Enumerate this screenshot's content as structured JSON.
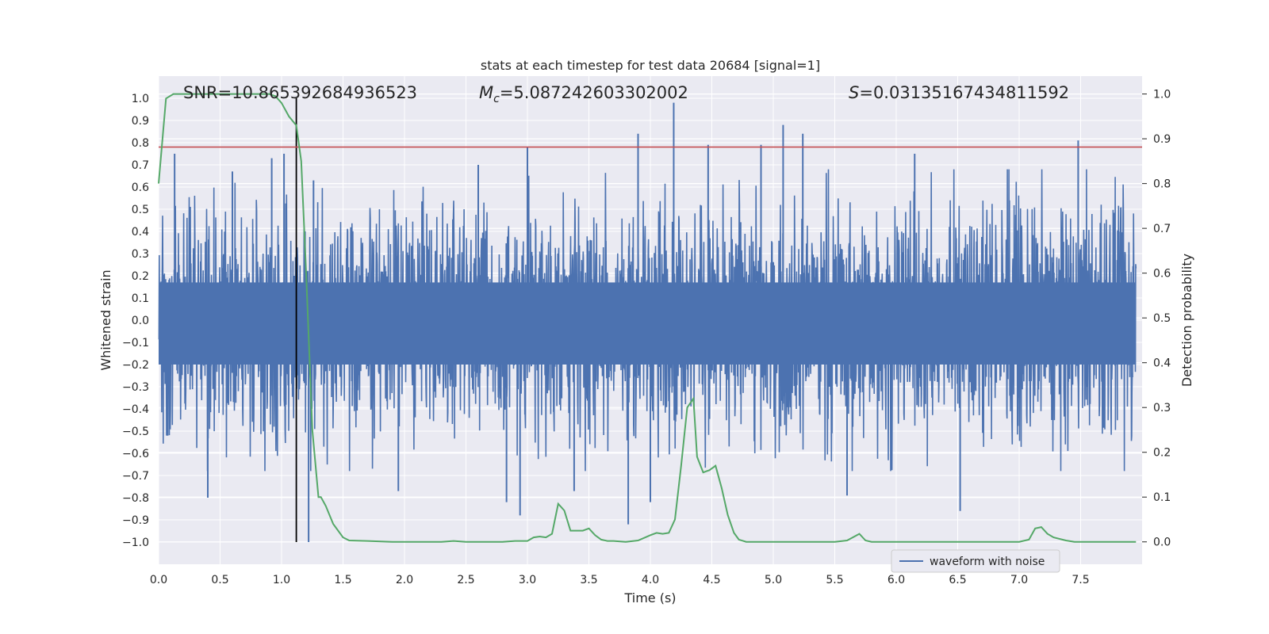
{
  "chart_data": {
    "type": "line",
    "title": "stats at each timestep for test data 20684 [signal=1]",
    "xlabel": "Time (s)",
    "ylabel_left": "Whitened strain",
    "ylabel_right": "Detection probability",
    "xlim": [
      0.0,
      8.0
    ],
    "ylim_left": [
      -1.1,
      1.1
    ],
    "ylim_right": [
      -0.05,
      1.04
    ],
    "x_ticks": [
      "0.0",
      "0.5",
      "1.0",
      "1.5",
      "2.0",
      "2.5",
      "3.0",
      "3.5",
      "4.0",
      "4.5",
      "5.0",
      "5.5",
      "6.0",
      "6.5",
      "7.0",
      "7.5"
    ],
    "y_left_ticks": [
      "1.0",
      "0.9",
      "0.8",
      "0.7",
      "0.6",
      "0.5",
      "0.4",
      "0.3",
      "0.2",
      "0.1",
      "0.0",
      "-0.1",
      "-0.2",
      "-0.3",
      "-0.4",
      "-0.5",
      "-0.6",
      "-0.7",
      "-0.8",
      "-0.9",
      "-1.0"
    ],
    "y_right_ticks": [
      "1.0",
      "0.9",
      "0.8",
      "0.7",
      "0.6",
      "0.5",
      "0.4",
      "0.3",
      "0.2",
      "0.1",
      "0.0"
    ],
    "grid": true,
    "colors": {
      "background": "#eaeaf2",
      "grid": "#ffffff",
      "waveform": "#4c72b0",
      "probability": "#55a868",
      "threshold": "#c44e52",
      "marker": "#000000"
    },
    "annotations": {
      "snr": "SNR=10.865392684936523",
      "mc_symbol": "M",
      "mc_sub": "c",
      "mc_value": "=5.087242603302002",
      "s_symbol": "S",
      "s_value": "=0.03135167434811592"
    },
    "threshold_left": 0.78,
    "marker_time": 1.12,
    "legend": {
      "entries": [
        "waveform with noise"
      ],
      "placement": "lower-right"
    },
    "series": [
      {
        "name": "waveform with noise",
        "axis": "left",
        "description": "dense noisy whitened strain, roughly within +/-0.5 with spikes",
        "peaks": [
          {
            "x": 0.13,
            "y": 0.75
          },
          {
            "x": 0.4,
            "y": -0.8
          },
          {
            "x": 0.6,
            "y": 0.67
          },
          {
            "x": 0.92,
            "y": 0.73
          },
          {
            "x": 1.02,
            "y": 0.75
          },
          {
            "x": 1.22,
            "y": -1.0
          },
          {
            "x": 1.26,
            "y": 0.63
          },
          {
            "x": 1.95,
            "y": -0.77
          },
          {
            "x": 2.6,
            "y": 0.7
          },
          {
            "x": 2.83,
            "y": -0.82
          },
          {
            "x": 2.94,
            "y": -0.88
          },
          {
            "x": 3.0,
            "y": 0.78
          },
          {
            "x": 3.38,
            "y": -0.77
          },
          {
            "x": 3.82,
            "y": -0.92
          },
          {
            "x": 3.9,
            "y": 0.84
          },
          {
            "x": 4.0,
            "y": -0.82
          },
          {
            "x": 4.19,
            "y": 0.98
          },
          {
            "x": 4.47,
            "y": 0.79
          },
          {
            "x": 4.9,
            "y": 0.79
          },
          {
            "x": 5.08,
            "y": 0.88
          },
          {
            "x": 5.24,
            "y": 0.84
          },
          {
            "x": 5.6,
            "y": -0.79
          },
          {
            "x": 6.15,
            "y": 0.75
          },
          {
            "x": 6.52,
            "y": -0.86
          },
          {
            "x": 7.48,
            "y": 0.81
          }
        ]
      },
      {
        "name": "detection probability",
        "axis": "right",
        "x": [
          0.0,
          0.06,
          0.12,
          0.2,
          0.3,
          0.5,
          0.7,
          0.9,
          0.95,
          1.0,
          1.06,
          1.12,
          1.16,
          1.2,
          1.25,
          1.3,
          1.32,
          1.36,
          1.42,
          1.5,
          1.55,
          1.7,
          1.9,
          2.1,
          2.3,
          2.4,
          2.5,
          2.7,
          2.8,
          2.9,
          3.0,
          3.05,
          3.1,
          3.15,
          3.2,
          3.25,
          3.3,
          3.35,
          3.4,
          3.45,
          3.5,
          3.55,
          3.6,
          3.65,
          3.7,
          3.8,
          3.9,
          4.0,
          4.05,
          4.1,
          4.15,
          4.2,
          4.25,
          4.3,
          4.35,
          4.38,
          4.43,
          4.48,
          4.53,
          4.58,
          4.63,
          4.68,
          4.72,
          4.78,
          4.85,
          5.0,
          5.2,
          5.4,
          5.5,
          5.6,
          5.7,
          5.75,
          5.8,
          5.9,
          6.0,
          6.1,
          6.2,
          6.3,
          6.5,
          6.6,
          6.7,
          6.8,
          6.9,
          7.0,
          7.08,
          7.13,
          7.18,
          7.23,
          7.28,
          7.38,
          7.45,
          7.6,
          7.8,
          7.95
        ],
        "y": [
          0.8,
          0.99,
          1.0,
          1.0,
          1.0,
          1.0,
          1.0,
          1.0,
          0.995,
          0.98,
          0.95,
          0.93,
          0.85,
          0.6,
          0.25,
          0.1,
          0.1,
          0.08,
          0.04,
          0.01,
          0.003,
          0.002,
          0.0,
          0.0,
          0.0,
          0.002,
          0.0,
          0.0,
          0.0,
          0.002,
          0.002,
          0.01,
          0.012,
          0.01,
          0.018,
          0.085,
          0.07,
          0.025,
          0.025,
          0.025,
          0.03,
          0.015,
          0.005,
          0.002,
          0.002,
          0.0,
          0.003,
          0.015,
          0.02,
          0.018,
          0.02,
          0.05,
          0.17,
          0.3,
          0.32,
          0.19,
          0.155,
          0.16,
          0.17,
          0.12,
          0.06,
          0.02,
          0.005,
          0.0,
          0.0,
          0.0,
          0.0,
          0.0,
          0.0,
          0.003,
          0.018,
          0.003,
          0.0,
          0.0,
          0.0,
          0.0,
          0.0,
          0.0,
          0.0,
          0.0,
          0.0,
          0.0,
          0.0,
          0.0,
          0.005,
          0.03,
          0.033,
          0.018,
          0.01,
          0.003,
          0.0,
          0.0,
          0.0,
          0.0
        ]
      }
    ]
  }
}
